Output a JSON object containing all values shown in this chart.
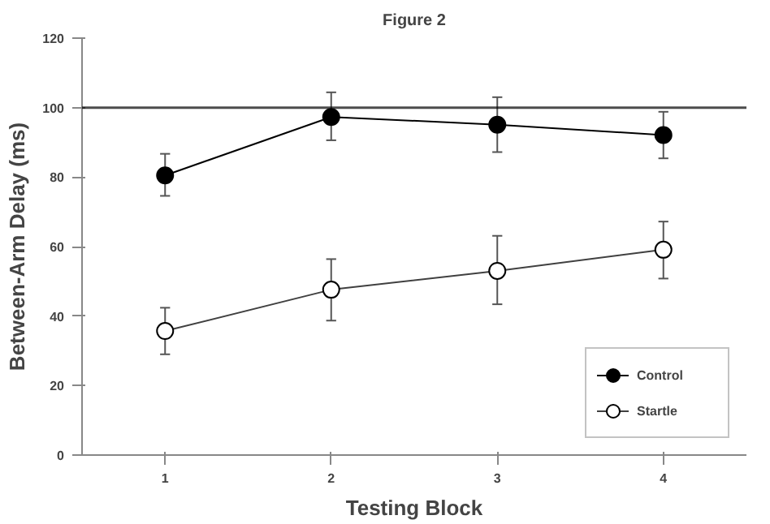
{
  "chart_data": {
    "type": "line",
    "title": "Figure 2",
    "xlabel": "Testing Block",
    "ylabel": "Between-Arm Delay (ms)",
    "x": [
      1,
      2,
      3,
      4
    ],
    "xlim": [
      0.5,
      4.5
    ],
    "xticks": [
      1,
      2,
      3,
      4
    ],
    "ylim": [
      0,
      120
    ],
    "yticks": [
      0,
      20,
      40,
      60,
      80,
      100,
      120
    ],
    "series": [
      {
        "name": "Control",
        "color": "#000000",
        "values": [
          80.5,
          97.3,
          95.1,
          92.1
        ],
        "errors": [
          [
            74.6,
            86.7
          ],
          [
            90.6,
            104.4
          ],
          [
            87.2,
            103
          ],
          [
            85.4,
            98.8
          ]
        ]
      },
      {
        "name": "Startle",
        "color": "#404040",
        "values": [
          35.7,
          47.6,
          53,
          59.1
        ],
        "errors": [
          [
            29,
            42.4
          ],
          [
            38.7,
            56.4
          ],
          [
            43.4,
            63.1
          ],
          [
            50.8,
            67.2
          ]
        ]
      }
    ],
    "ref_lines": [
      {
        "axis": "y",
        "value": 100,
        "color": "#000000"
      }
    ],
    "marker": "circle",
    "legend": "bottom right",
    "grid": false
  }
}
